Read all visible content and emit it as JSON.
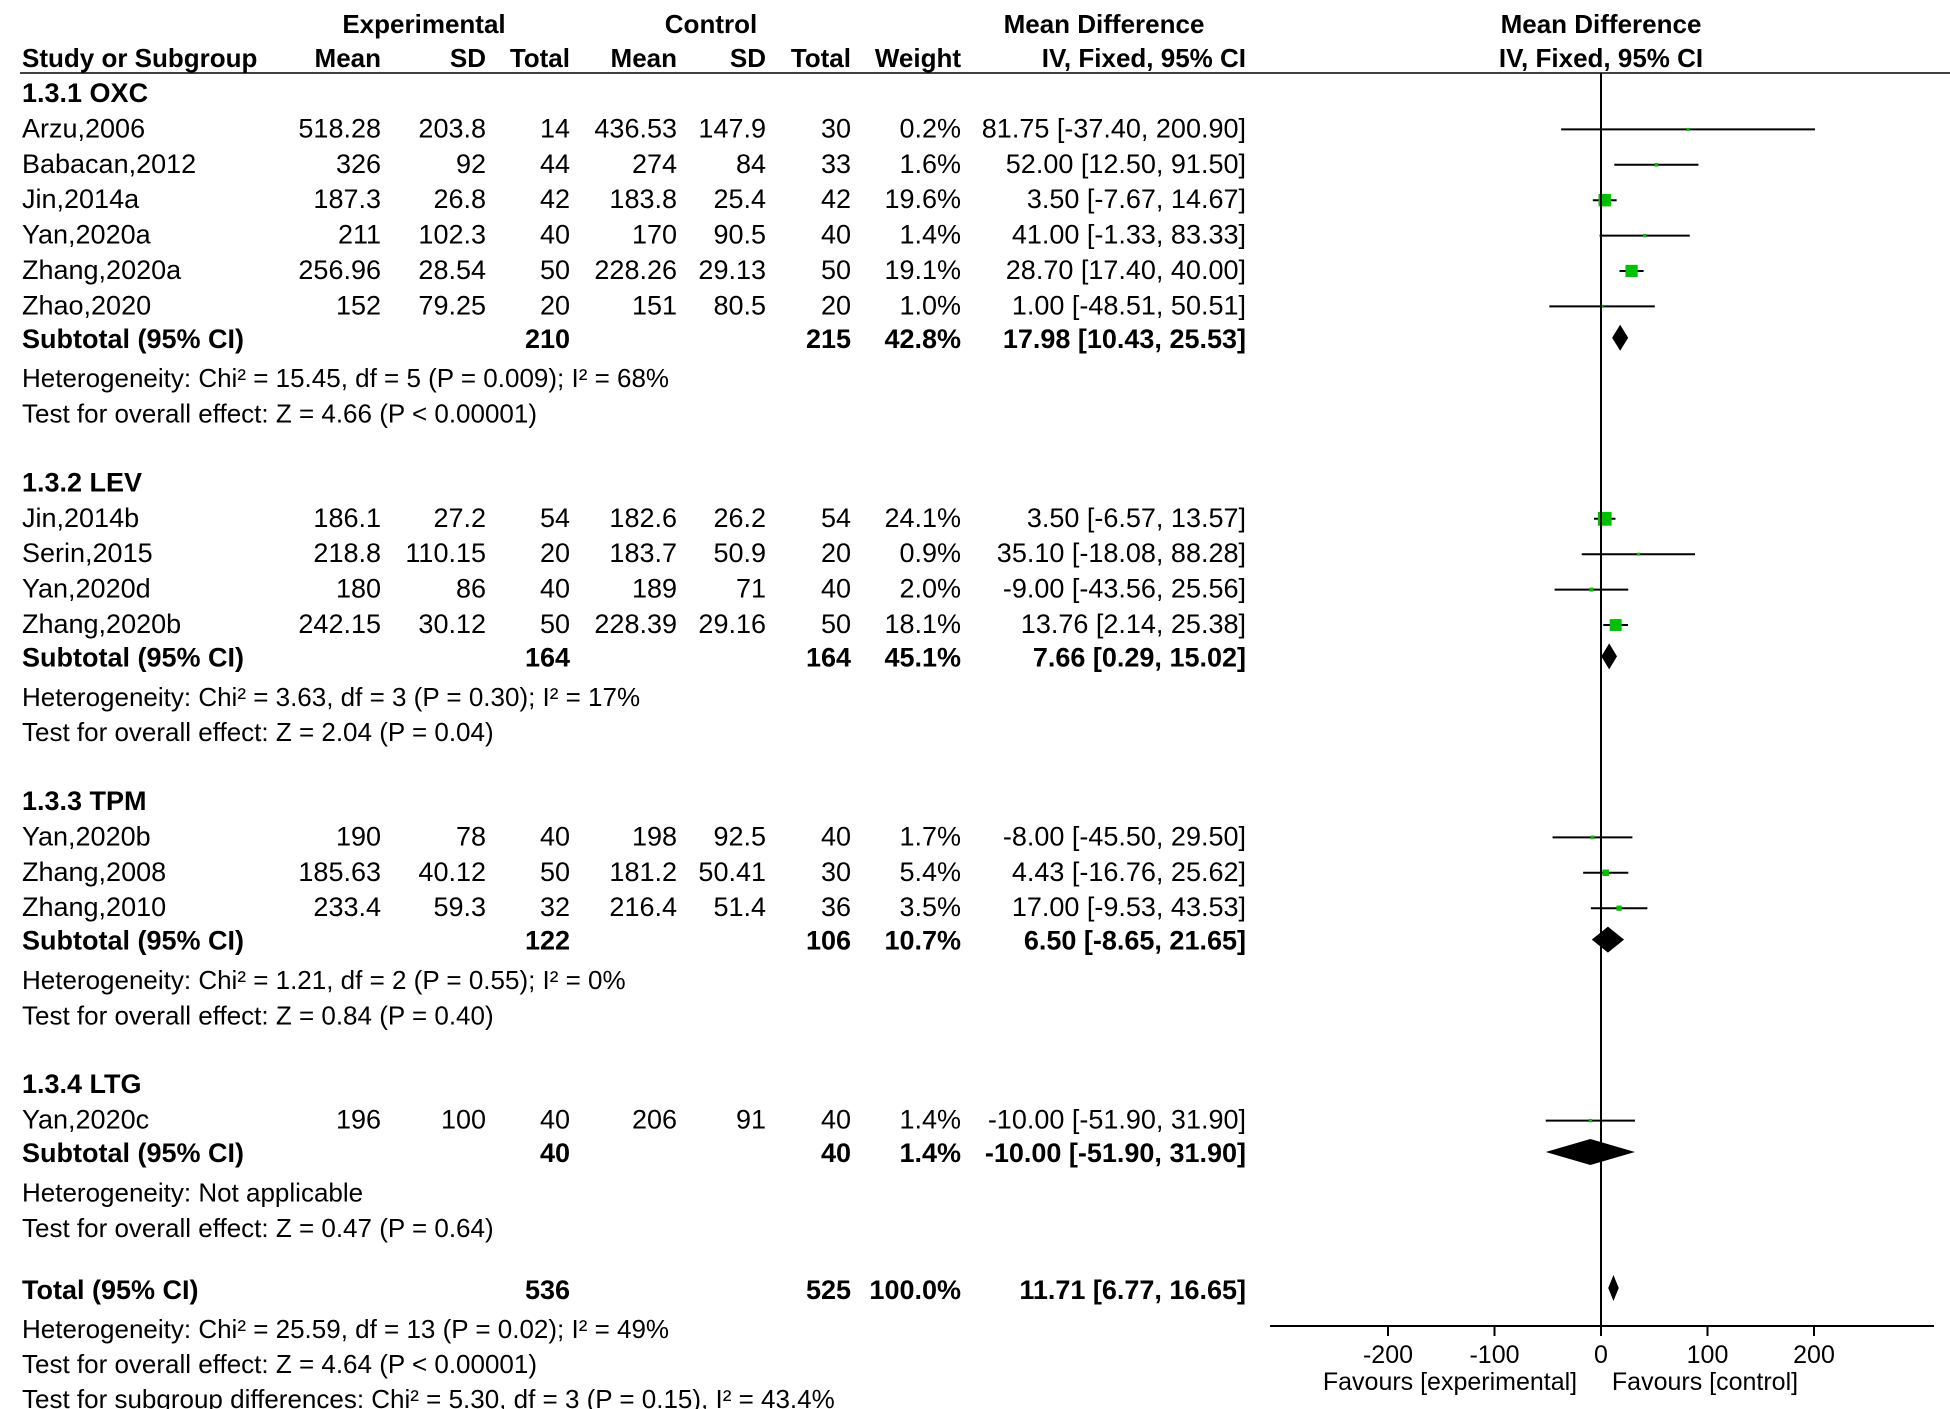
{
  "chart_data": {
    "type": "forest",
    "columns": {
      "group_experimental": "Experimental",
      "group_control": "Control",
      "group_md": "Mean Difference",
      "study": "Study or Subgroup",
      "mean_e": "Mean",
      "sd_e": "SD",
      "total_e": "Total",
      "mean_c": "Mean",
      "sd_c": "SD",
      "total_c": "Total",
      "weight": "Weight",
      "ci": "IV, Fixed, 95% CI"
    },
    "plot_header": {
      "title": "Mean Difference",
      "subtitle": "IV, Fixed, 95% CI"
    },
    "subgroups": [
      {
        "title": "1.3.1 OXC",
        "studies": [
          {
            "name": "Arzu,2006",
            "mean_e": "518.28",
            "sd_e": "203.8",
            "total_e": "14",
            "mean_c": "436.53",
            "sd_c": "147.9",
            "total_c": "30",
            "weight": "0.2%",
            "ci_text": "81.75 [-37.40, 200.90]",
            "md": 81.75,
            "lo": -37.4,
            "hi": 200.9,
            "w": 0.2
          },
          {
            "name": "Babacan,2012",
            "mean_e": "326",
            "sd_e": "92",
            "total_e": "44",
            "mean_c": "274",
            "sd_c": "84",
            "total_c": "33",
            "weight": "1.6%",
            "ci_text": "52.00 [12.50, 91.50]",
            "md": 52.0,
            "lo": 12.5,
            "hi": 91.5,
            "w": 1.6
          },
          {
            "name": "Jin,2014a",
            "mean_e": "187.3",
            "sd_e": "26.8",
            "total_e": "42",
            "mean_c": "183.8",
            "sd_c": "25.4",
            "total_c": "42",
            "weight": "19.6%",
            "ci_text": "3.50 [-7.67, 14.67]",
            "md": 3.5,
            "lo": -7.67,
            "hi": 14.67,
            "w": 19.6
          },
          {
            "name": "Yan,2020a",
            "mean_e": "211",
            "sd_e": "102.3",
            "total_e": "40",
            "mean_c": "170",
            "sd_c": "90.5",
            "total_c": "40",
            "weight": "1.4%",
            "ci_text": "41.00 [-1.33, 83.33]",
            "md": 41.0,
            "lo": -1.33,
            "hi": 83.33,
            "w": 1.4
          },
          {
            "name": "Zhang,2020a",
            "mean_e": "256.96",
            "sd_e": "28.54",
            "total_e": "50",
            "mean_c": "228.26",
            "sd_c": "29.13",
            "total_c": "50",
            "weight": "19.1%",
            "ci_text": "28.70 [17.40, 40.00]",
            "md": 28.7,
            "lo": 17.4,
            "hi": 40.0,
            "w": 19.1
          },
          {
            "name": "Zhao,2020",
            "mean_e": "152",
            "sd_e": "79.25",
            "total_e": "20",
            "mean_c": "151",
            "sd_c": "80.5",
            "total_c": "20",
            "weight": "1.0%",
            "ci_text": "1.00 [-48.51, 50.51]",
            "md": 1.0,
            "lo": -48.51,
            "hi": 50.51,
            "w": 1.0
          }
        ],
        "subtotal": {
          "label": "Subtotal (95% CI)",
          "total_e": "210",
          "total_c": "215",
          "weight": "42.8%",
          "ci_text": "17.98 [10.43, 25.53]",
          "md": 17.98,
          "lo": 10.43,
          "hi": 25.53
        },
        "heterogeneity": "Heterogeneity: Chi² = 15.45, df = 5 (P = 0.009); I² = 68%",
        "overall": "Test for overall effect: Z = 4.66 (P < 0.00001)"
      },
      {
        "title": "1.3.2 LEV",
        "studies": [
          {
            "name": "Jin,2014b",
            "mean_e": "186.1",
            "sd_e": "27.2",
            "total_e": "54",
            "mean_c": "182.6",
            "sd_c": "26.2",
            "total_c": "54",
            "weight": "24.1%",
            "ci_text": "3.50 [-6.57, 13.57]",
            "md": 3.5,
            "lo": -6.57,
            "hi": 13.57,
            "w": 24.1
          },
          {
            "name": "Serin,2015",
            "mean_e": "218.8",
            "sd_e": "110.15",
            "total_e": "20",
            "mean_c": "183.7",
            "sd_c": "50.9",
            "total_c": "20",
            "weight": "0.9%",
            "ci_text": "35.10 [-18.08, 88.28]",
            "md": 35.1,
            "lo": -18.08,
            "hi": 88.28,
            "w": 0.9
          },
          {
            "name": "Yan,2020d",
            "mean_e": "180",
            "sd_e": "86",
            "total_e": "40",
            "mean_c": "189",
            "sd_c": "71",
            "total_c": "40",
            "weight": "2.0%",
            "ci_text": "-9.00 [-43.56, 25.56]",
            "md": -9.0,
            "lo": -43.56,
            "hi": 25.56,
            "w": 2.0
          },
          {
            "name": "Zhang,2020b",
            "mean_e": "242.15",
            "sd_e": "30.12",
            "total_e": "50",
            "mean_c": "228.39",
            "sd_c": "29.16",
            "total_c": "50",
            "weight": "18.1%",
            "ci_text": "13.76 [2.14, 25.38]",
            "md": 13.76,
            "lo": 2.14,
            "hi": 25.38,
            "w": 18.1
          }
        ],
        "subtotal": {
          "label": "Subtotal (95% CI)",
          "total_e": "164",
          "total_c": "164",
          "weight": "45.1%",
          "ci_text": "7.66 [0.29, 15.02]",
          "md": 7.66,
          "lo": 0.29,
          "hi": 15.02
        },
        "heterogeneity": "Heterogeneity: Chi² = 3.63, df = 3 (P = 0.30); I² = 17%",
        "overall": "Test for overall effect: Z = 2.04 (P = 0.04)"
      },
      {
        "title": "1.3.3 TPM",
        "studies": [
          {
            "name": "Yan,2020b",
            "mean_e": "190",
            "sd_e": "78",
            "total_e": "40",
            "mean_c": "198",
            "sd_c": "92.5",
            "total_c": "40",
            "weight": "1.7%",
            "ci_text": "-8.00 [-45.50, 29.50]",
            "md": -8.0,
            "lo": -45.5,
            "hi": 29.5,
            "w": 1.7
          },
          {
            "name": "Zhang,2008",
            "mean_e": "185.63",
            "sd_e": "40.12",
            "total_e": "50",
            "mean_c": "181.2",
            "sd_c": "50.41",
            "total_c": "30",
            "weight": "5.4%",
            "ci_text": "4.43 [-16.76, 25.62]",
            "md": 4.43,
            "lo": -16.76,
            "hi": 25.62,
            "w": 5.4
          },
          {
            "name": "Zhang,2010",
            "mean_e": "233.4",
            "sd_e": "59.3",
            "total_e": "32",
            "mean_c": "216.4",
            "sd_c": "51.4",
            "total_c": "36",
            "weight": "3.5%",
            "ci_text": "17.00 [-9.53, 43.53]",
            "md": 17.0,
            "lo": -9.53,
            "hi": 43.53,
            "w": 3.5
          }
        ],
        "subtotal": {
          "label": "Subtotal (95% CI)",
          "total_e": "122",
          "total_c": "106",
          "weight": "10.7%",
          "ci_text": "6.50 [-8.65, 21.65]",
          "md": 6.5,
          "lo": -8.65,
          "hi": 21.65
        },
        "heterogeneity": "Heterogeneity: Chi² = 1.21, df = 2 (P = 0.55); I² = 0%",
        "overall": "Test for overall effect: Z = 0.84 (P = 0.40)"
      },
      {
        "title": "1.3.4 LTG",
        "studies": [
          {
            "name": "Yan,2020c",
            "mean_e": "196",
            "sd_e": "100",
            "total_e": "40",
            "mean_c": "206",
            "sd_c": "91",
            "total_c": "40",
            "weight": "1.4%",
            "ci_text": "-10.00 [-51.90, 31.90]",
            "md": -10.0,
            "lo": -51.9,
            "hi": 31.9,
            "w": 1.4
          }
        ],
        "subtotal": {
          "label": "Subtotal (95% CI)",
          "total_e": "40",
          "total_c": "40",
          "weight": "1.4%",
          "ci_text": "-10.00 [-51.90, 31.90]",
          "md": -10.0,
          "lo": -51.9,
          "hi": 31.9
        },
        "heterogeneity": "Heterogeneity: Not applicable",
        "overall": "Test for overall effect: Z = 0.47 (P = 0.64)"
      }
    ],
    "total": {
      "label": "Total (95% CI)",
      "total_e": "536",
      "total_c": "525",
      "weight": "100.0%",
      "ci_text": "11.71 [6.77, 16.65]",
      "md": 11.71,
      "lo": 6.77,
      "hi": 16.65
    },
    "footer": [
      "Heterogeneity: Chi² = 25.59, df = 13 (P = 0.02); I² = 49%",
      "Test for overall effect: Z = 4.64 (P < 0.00001)",
      "Test for subgroup differences: Chi² = 5.30, df = 3 (P = 0.15), I² = 43.4%"
    ],
    "xaxis": {
      "ticks": [
        -200,
        -100,
        0,
        100,
        200
      ],
      "tick_labels": [
        "-200",
        "-100",
        "0",
        "100",
        "200"
      ],
      "xlim": [
        -310,
        310
      ]
    },
    "favours_left": "Favours [experimental]",
    "favours_right": "Favours [control]",
    "colors": {
      "square": "#00c000",
      "diamond": "#000000",
      "line": "#000000"
    }
  }
}
